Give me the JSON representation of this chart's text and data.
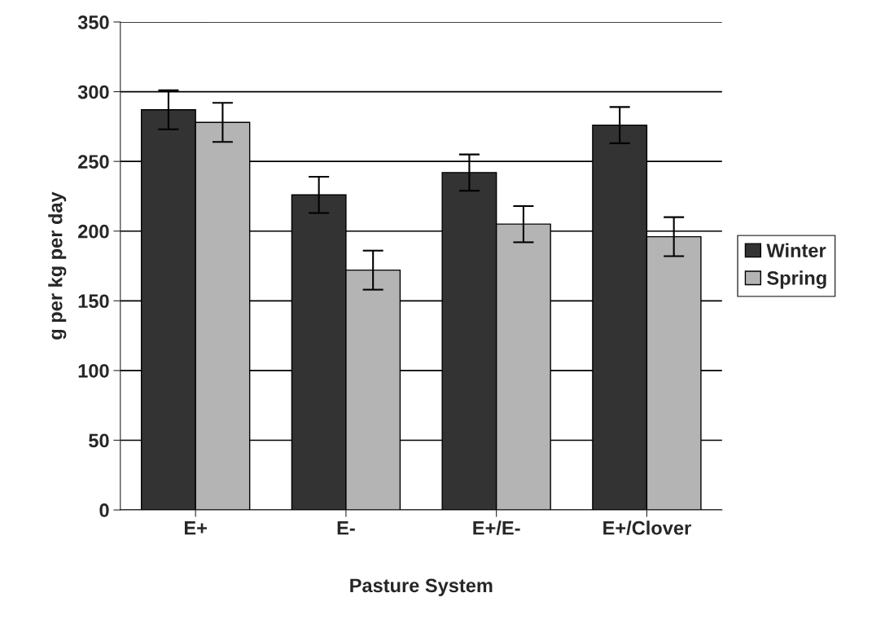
{
  "chart_data": {
    "type": "bar",
    "xlabel": "Pasture System",
    "ylabel": "g per kg per day",
    "categories": [
      "E+",
      "E-",
      "E+/E-",
      "E+/Clover"
    ],
    "series": [
      {
        "name": "Winter",
        "color": "#333333",
        "values": [
          287,
          226,
          242,
          276
        ],
        "errors": [
          14,
          13,
          13,
          13
        ]
      },
      {
        "name": "Spring",
        "color": "#b4b4b4",
        "values": [
          278,
          172,
          205,
          196
        ],
        "errors": [
          14,
          14,
          13,
          14
        ]
      }
    ],
    "ylim": [
      0,
      350
    ],
    "yticks": [
      0,
      50,
      100,
      150,
      200,
      250,
      300,
      350
    ],
    "grid": "y",
    "legend": "right"
  }
}
